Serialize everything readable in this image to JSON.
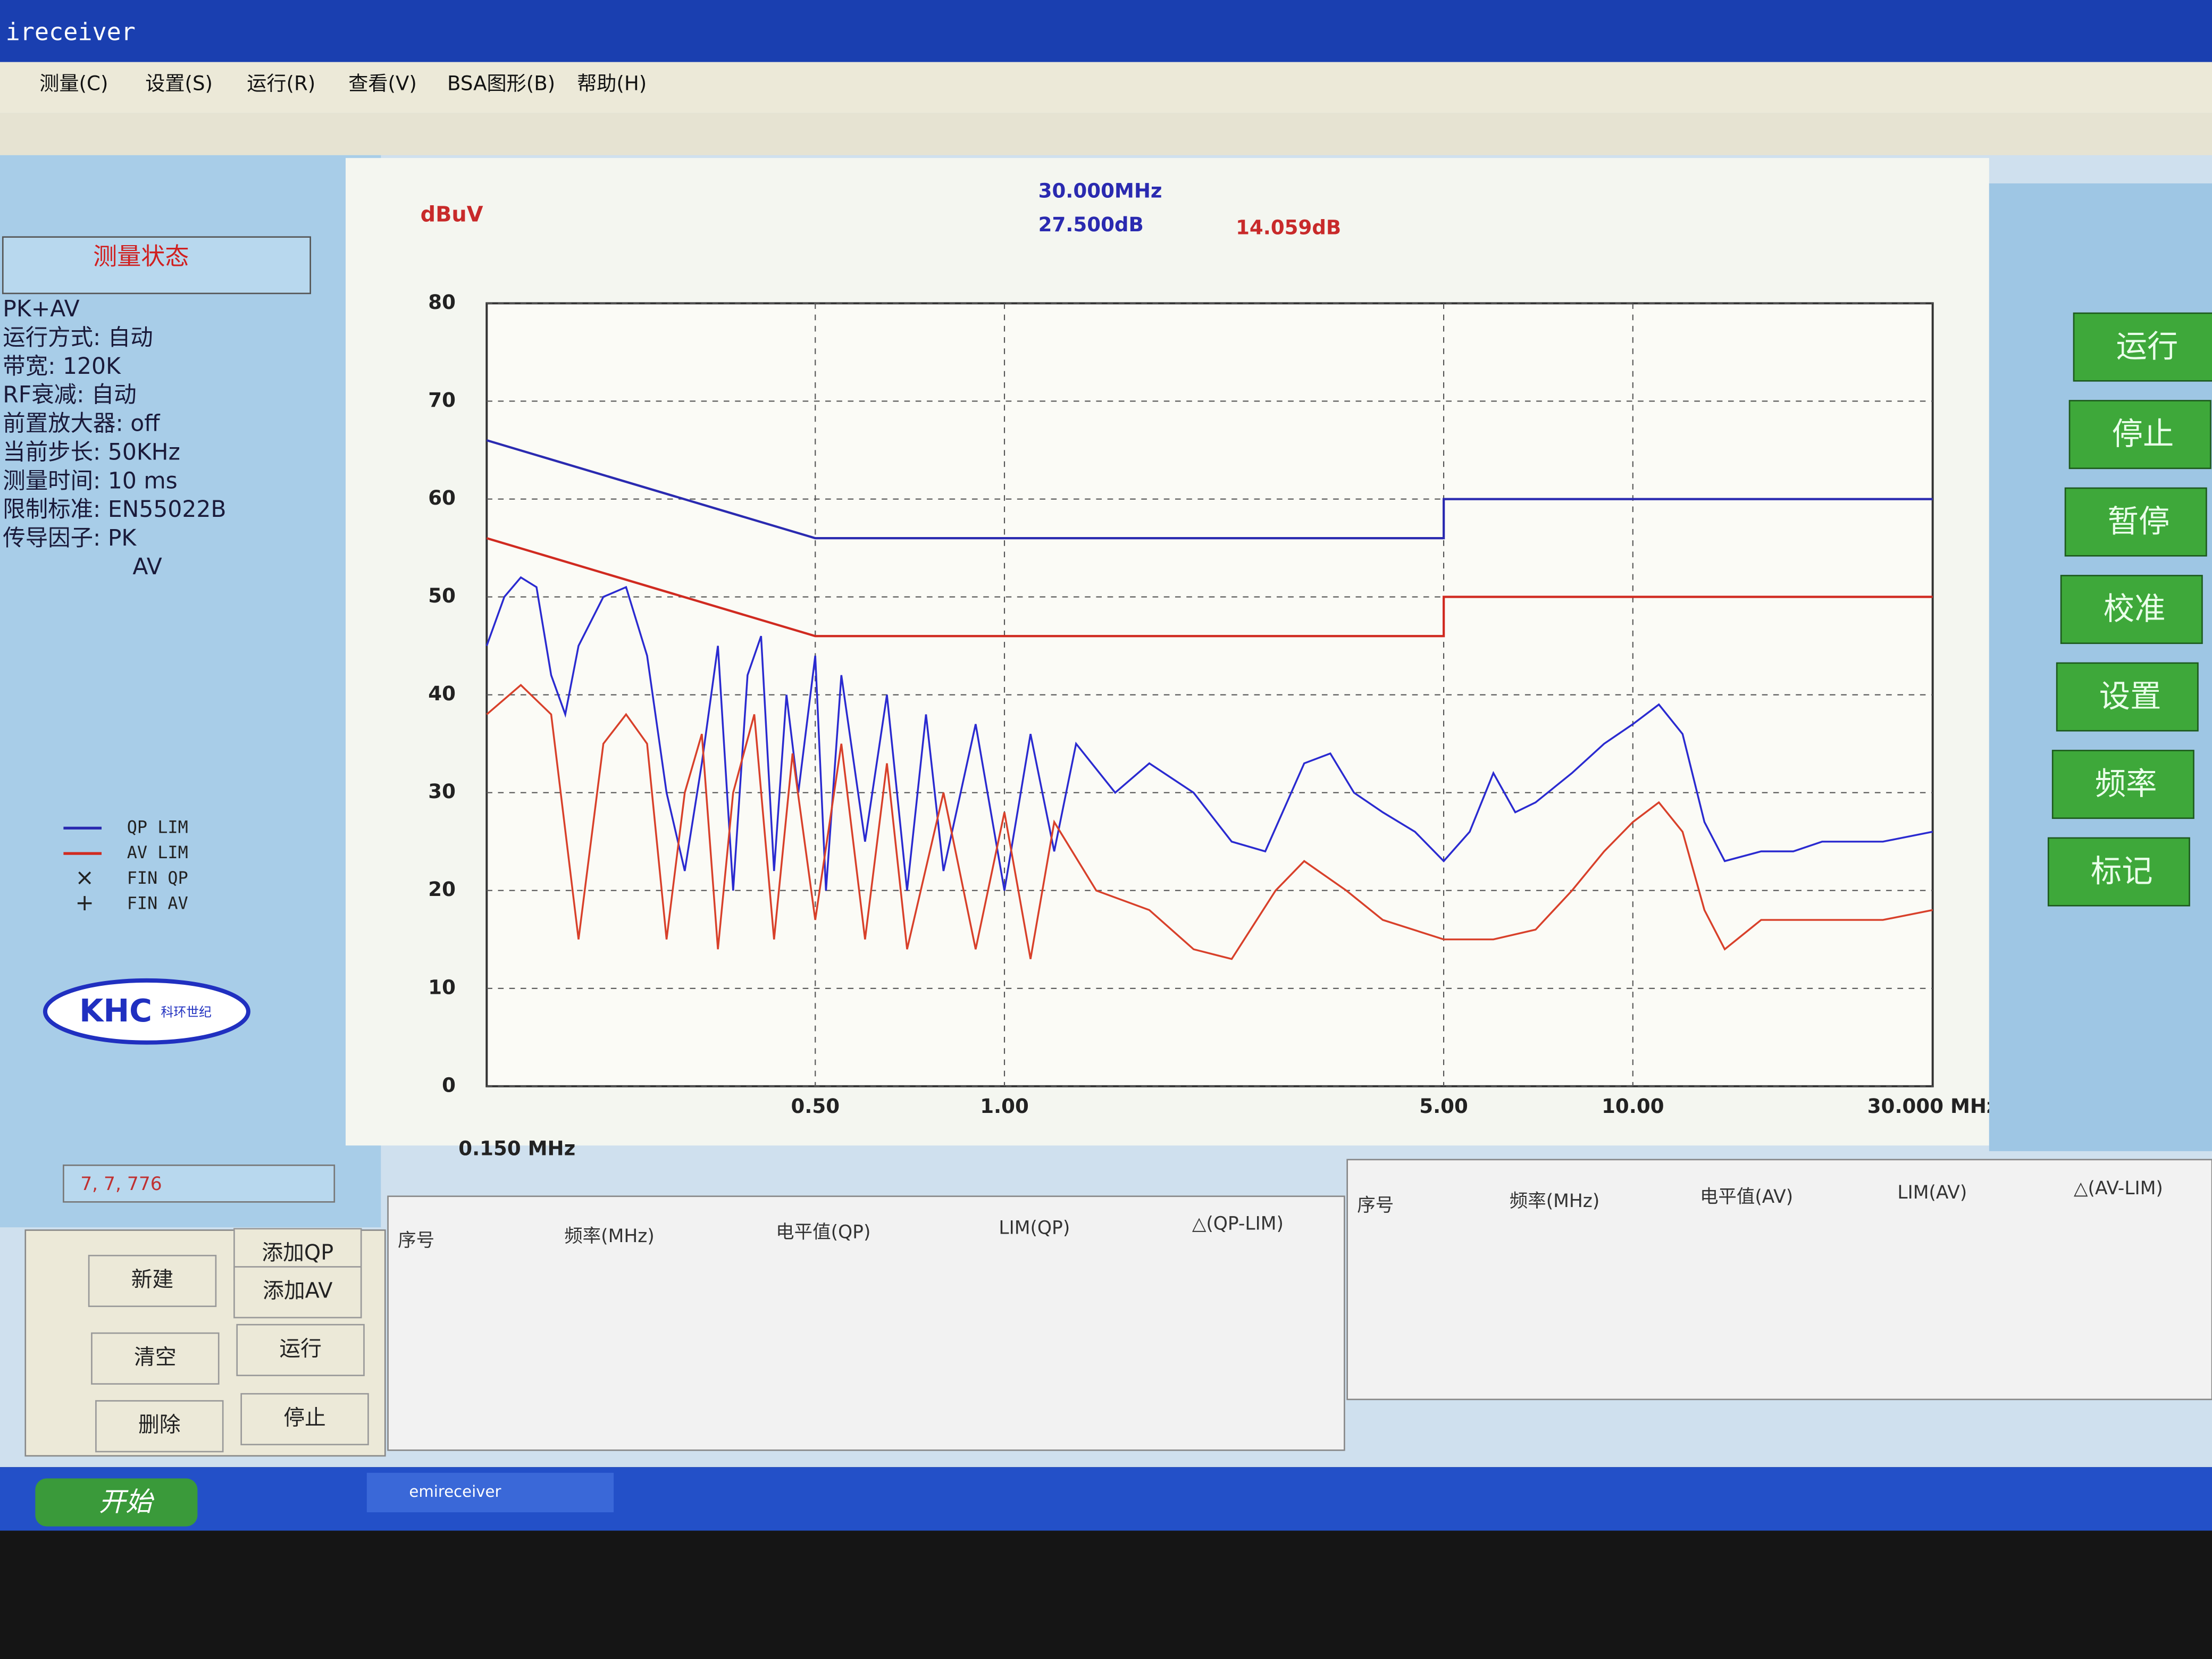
{
  "window": {
    "title": "ireceiver",
    "menu": [
      "测量(C)",
      "设置(S)",
      "运行(R)",
      "查看(V)",
      "BSA图形(B)",
      "帮助(H)"
    ]
  },
  "status_panel": {
    "title": "测量状态",
    "lines": [
      "PK+AV",
      "运行方式: 自动",
      "带宽: 120K",
      "RF衰减: 自动",
      "前置放大器: off",
      "当前步长: 50KHz",
      "测量时间: 10 ms",
      "限制标准: EN55022B",
      "传导因子: PK",
      "AV"
    ],
    "logo": "KHC",
    "logo_sub": "科环世纪",
    "coords": "7, 7, 776"
  },
  "chart_data": {
    "type": "line",
    "y_label": "dBuV",
    "readout_freq": "30.000MHz",
    "readout_qp": "27.500dB",
    "readout_av": "14.059dB",
    "xscale": "log",
    "xlim": [
      0.15,
      30
    ],
    "xticks": [
      {
        "value": 0.15,
        "label": "0.150 MHz"
      },
      {
        "value": 0.5,
        "label": "0.50"
      },
      {
        "value": 1,
        "label": "1.00"
      },
      {
        "value": 5,
        "label": "5.00"
      },
      {
        "value": 10,
        "label": "10.00"
      },
      {
        "value": 30,
        "label": "30.000 MHz"
      }
    ],
    "ylim": [
      0,
      80
    ],
    "yticks": [
      0,
      10,
      20,
      30,
      40,
      50,
      60,
      70,
      80
    ],
    "grid": true,
    "series": [
      {
        "name": "QP LIM",
        "color": "#2a2ab0",
        "x": [
          0.15,
          0.5,
          5,
          5,
          30
        ],
        "values": [
          66,
          56,
          56,
          60,
          60
        ]
      },
      {
        "name": "AV LIM",
        "color": "#d02a20",
        "x": [
          0.15,
          0.5,
          5,
          5,
          30
        ],
        "values": [
          56,
          46,
          46,
          50,
          50
        ]
      },
      {
        "color": "#2a2ad0",
        "x": [
          0.15,
          0.16,
          0.17,
          0.18,
          0.19,
          0.2,
          0.21,
          0.23,
          0.25,
          0.27,
          0.29,
          0.31,
          0.33,
          0.35,
          0.37,
          0.39,
          0.41,
          0.43,
          0.45,
          0.47,
          0.5,
          0.52,
          0.55,
          0.6,
          0.65,
          0.7,
          0.75,
          0.8,
          0.9,
          1,
          1.1,
          1.2,
          1.3,
          1.5,
          1.7,
          2,
          2.3,
          2.6,
          3,
          3.3,
          3.6,
          4,
          4.5,
          5,
          5.5,
          6,
          6.5,
          7,
          8,
          9,
          10,
          11,
          12,
          13,
          14,
          16,
          18,
          20,
          25,
          30
        ],
        "values": [
          45,
          50,
          52,
          51,
          42,
          38,
          45,
          50,
          51,
          44,
          30,
          22,
          33,
          45,
          20,
          42,
          46,
          22,
          40,
          30,
          44,
          20,
          42,
          25,
          40,
          20,
          38,
          22,
          37,
          20,
          36,
          24,
          35,
          30,
          33,
          30,
          25,
          24,
          33,
          34,
          30,
          28,
          26,
          23,
          26,
          32,
          28,
          29,
          32,
          35,
          37,
          39,
          36,
          27,
          23,
          24,
          24,
          25,
          25,
          26
        ]
      },
      {
        "color": "#d8402a",
        "x": [
          0.15,
          0.17,
          0.19,
          0.21,
          0.23,
          0.25,
          0.27,
          0.29,
          0.31,
          0.33,
          0.35,
          0.37,
          0.4,
          0.43,
          0.46,
          0.5,
          0.55,
          0.6,
          0.65,
          0.7,
          0.8,
          0.9,
          1,
          1.1,
          1.2,
          1.4,
          1.7,
          2,
          2.3,
          2.7,
          3,
          3.5,
          4,
          5,
          6,
          7,
          8,
          9,
          10,
          11,
          12,
          13,
          14,
          16,
          20,
          25,
          30
        ],
        "values": [
          38,
          41,
          38,
          15,
          35,
          38,
          35,
          15,
          30,
          36,
          14,
          30,
          38,
          15,
          34,
          17,
          35,
          15,
          33,
          14,
          30,
          14,
          28,
          13,
          27,
          20,
          18,
          14,
          13,
          20,
          23,
          20,
          17,
          15,
          15,
          16,
          20,
          24,
          27,
          29,
          26,
          18,
          14,
          17,
          17,
          17,
          18
        ]
      }
    ],
    "legend_extra": [
      {
        "symbol": "×",
        "label": "FIN QP"
      },
      {
        "symbol": "+",
        "label": "FIN AV"
      }
    ]
  },
  "right_buttons": [
    "运行",
    "停止",
    "暂停",
    "校准",
    "设置",
    "频率",
    "标记"
  ],
  "bottom_buttons": {
    "new": "新建",
    "add_qp": "添加QP",
    "add_av": "添加AV",
    "clear": "清空",
    "run": "运行",
    "delete": "删除",
    "stop": "停止"
  },
  "qp_table": {
    "headers": [
      "序号",
      "频率(MHz)",
      "电平值(QP)",
      "LIM(QP)",
      "△(QP-LIM)"
    ]
  },
  "av_table": {
    "headers": [
      "序号",
      "频率(MHz)",
      "电平值(AV)",
      "LIM(AV)",
      "△(AV-LIM)"
    ]
  },
  "taskbar": {
    "start": "开始",
    "task": "emireceiver"
  }
}
